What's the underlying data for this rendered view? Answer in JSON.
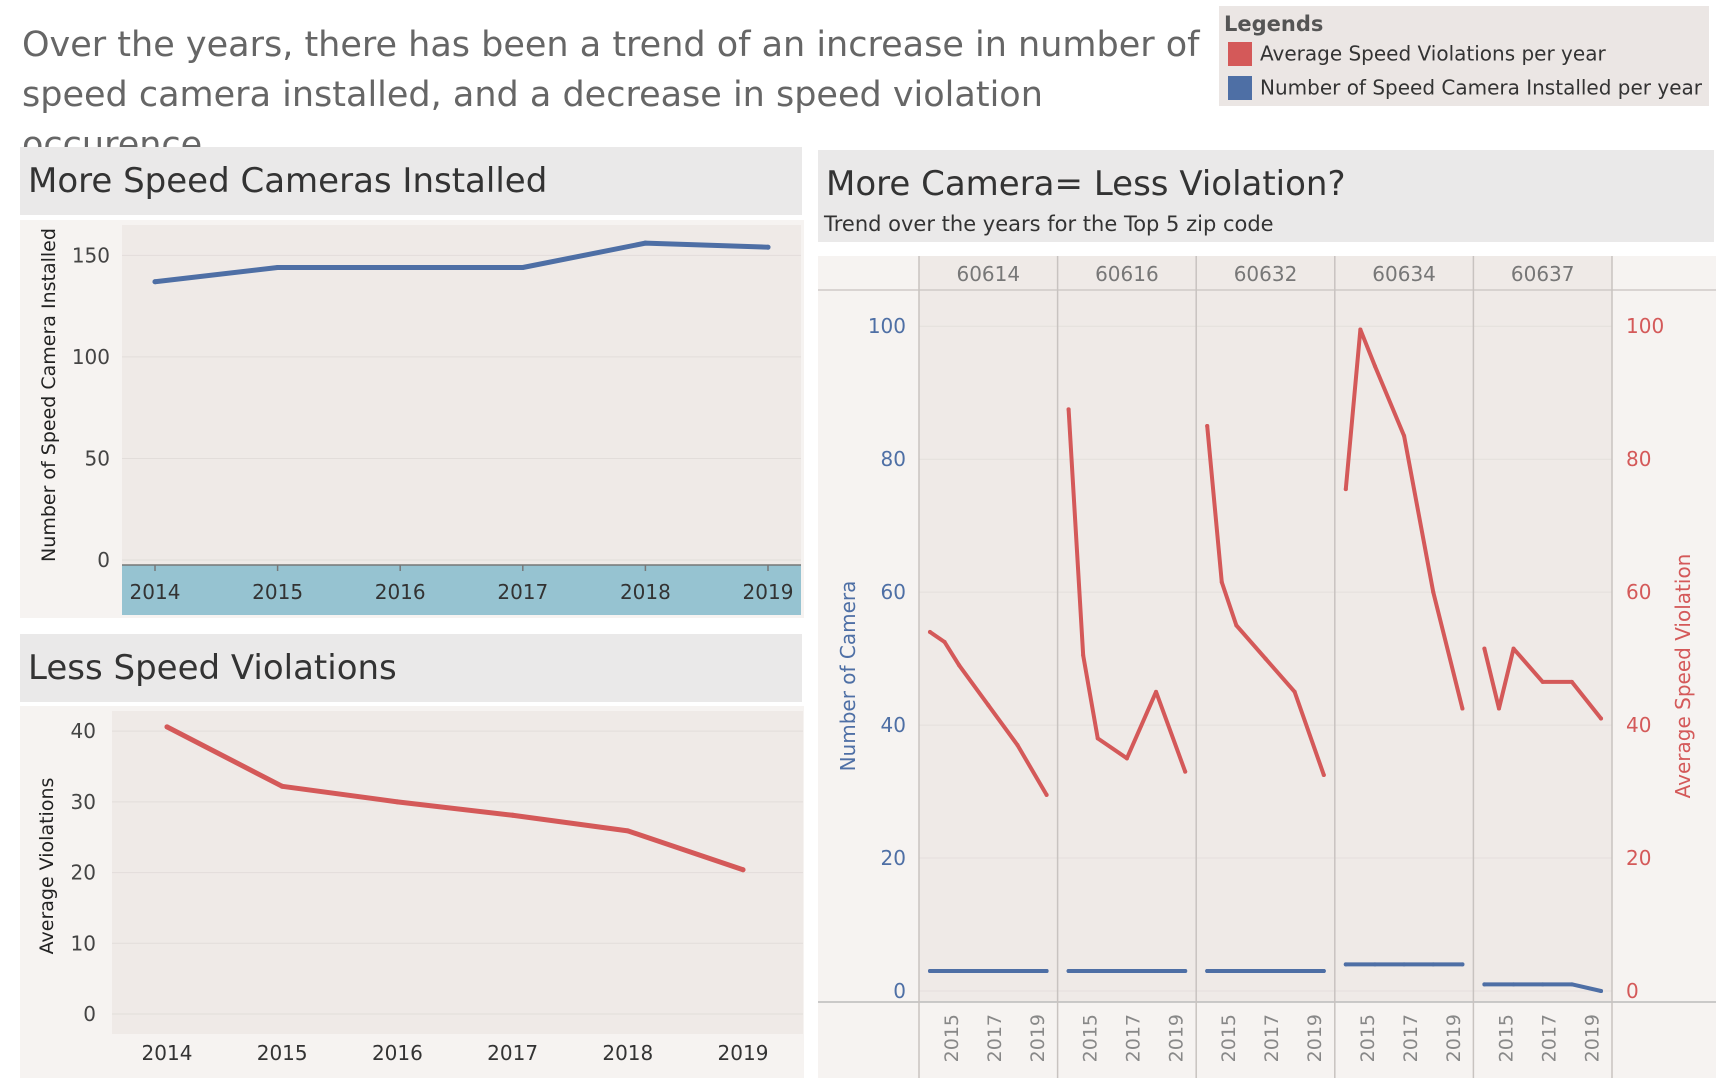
{
  "headline": "Over the years, there has been a trend of an increase in number of speed camera installed, and a decrease in speed violation occurence.",
  "legend": {
    "title": "Legends",
    "items": [
      {
        "label": "Average Speed Violations per year",
        "color": "#d45959"
      },
      {
        "label": "Number of Speed Camera Installed per year",
        "color": "#4e6fa5"
      }
    ]
  },
  "panels": {
    "cameras_title": "More Speed Cameras Installed",
    "violations_title": "Less Speed Violations",
    "zip_title": "More Camera= Less Violation?",
    "zip_subtitle": "Trend over the years for the Top 5 zip code"
  },
  "chart_data": [
    {
      "type": "line",
      "title": "More Speed Cameras Installed",
      "xlabel": "",
      "ylabel": "Number of Speed Camera Installed",
      "x": [
        2014,
        2015,
        2016,
        2017,
        2018,
        2019
      ],
      "x_tick_labels": [
        "2014",
        "2015",
        "2016",
        "2017",
        "2018",
        "2019"
      ],
      "series": [
        {
          "values": [
            137,
            144,
            144,
            144,
            156,
            154
          ],
          "color": "#4e6fa5"
        }
      ],
      "ylim": [
        0,
        160
      ],
      "yticks": [
        0,
        50,
        100,
        150
      ],
      "ytick_labels": [
        "0",
        "50",
        "100",
        "150"
      ],
      "grid": true
    },
    {
      "type": "line",
      "title": "Less Speed Violations",
      "xlabel": "",
      "ylabel": "Average Violations",
      "x": [
        2014,
        2015,
        2016,
        2017,
        2018,
        2019
      ],
      "x_tick_labels": [
        "2014",
        "2015",
        "2016",
        "2017",
        "2018",
        "2019"
      ],
      "series": [
        {
          "values": [
            40.6,
            32.2,
            30.0,
            28.1,
            25.9,
            20.4
          ],
          "color": "#d45959"
        }
      ],
      "ylim": [
        0,
        42
      ],
      "yticks": [
        0,
        10,
        20,
        30,
        40
      ],
      "ytick_labels": [
        "0",
        "10",
        "20",
        "30",
        "40"
      ],
      "grid": true
    },
    {
      "type": "line",
      "title": "More Camera= Less Violation?",
      "subtitle": "Trend over the years for the Top 5 zip code",
      "ylabel_left": "Number of Camera",
      "ylabel_right": "Average Speed Violation",
      "ylim": [
        0,
        105
      ],
      "yticks": [
        0,
        20,
        40,
        60,
        80,
        100
      ],
      "ytick_labels": [
        "0",
        "20",
        "40",
        "60",
        "80",
        "100"
      ],
      "x": [
        2015,
        2016,
        2017,
        2018,
        2019
      ],
      "x_tick_labels": [
        "2015",
        "2017",
        "2019"
      ],
      "x_tick_values": [
        2015,
        2017,
        2019
      ],
      "facets": [
        {
          "zip": "60614",
          "x": [
            2015,
            2016,
            2017,
            2018,
            2019
          ],
          "violations": [
            54,
            52.5,
            49,
            43,
            37,
            29.5
          ],
          "violations_x": [
            2015,
            2015.5,
            2016,
            2017,
            2018,
            2019
          ],
          "cameras": [
            3,
            3,
            3,
            3,
            3
          ]
        },
        {
          "zip": "60616",
          "x": [
            2015,
            2016,
            2017,
            2018,
            2019
          ],
          "violations": [
            87.5,
            50.5,
            38,
            35,
            45,
            33
          ],
          "violations_x": [
            2015,
            2015.5,
            2016,
            2017,
            2018,
            2019
          ],
          "cameras": [
            3,
            3,
            3,
            3,
            3
          ]
        },
        {
          "zip": "60632",
          "x": [
            2015,
            2016,
            2017,
            2018,
            2019
          ],
          "violations": [
            85,
            61.5,
            55,
            50,
            45,
            32.5
          ],
          "violations_x": [
            2015,
            2015.5,
            2016,
            2017,
            2018,
            2019
          ],
          "cameras": [
            3,
            3,
            3,
            3,
            3
          ]
        },
        {
          "zip": "60634",
          "x": [
            2015,
            2016,
            2017,
            2018,
            2019
          ],
          "violations": [
            75.5,
            99.5,
            94,
            83.5,
            60,
            42.5
          ],
          "violations_x": [
            2015,
            2015.5,
            2016,
            2017,
            2018,
            2019
          ],
          "cameras": [
            4,
            4,
            4,
            4,
            4
          ]
        },
        {
          "zip": "60637",
          "x": [
            2015,
            2016,
            2017,
            2018,
            2019
          ],
          "violations": [
            51.5,
            42.5,
            51.5,
            46.5,
            46.5,
            41
          ],
          "violations_x": [
            2015,
            2015.5,
            2016,
            2017,
            2018,
            2019
          ],
          "cameras": [
            1,
            1,
            1,
            1,
            0
          ]
        }
      ],
      "violation_color": "#d45959",
      "camera_color": "#4e6fa5",
      "grid": true
    }
  ]
}
